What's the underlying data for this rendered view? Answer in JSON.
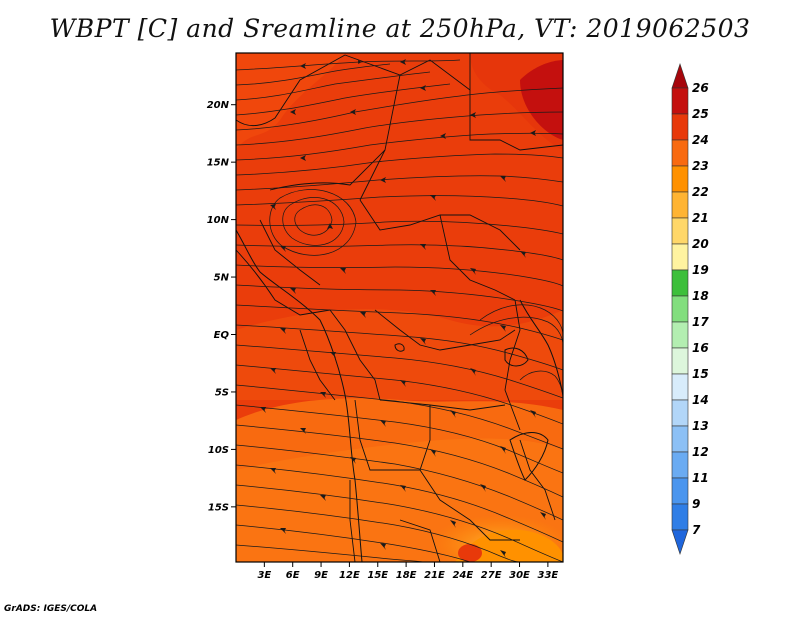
{
  "title": "WBPT [C] and Sreamline at 250hPa, VT: 2019062503",
  "credit": "GrADS: IGES/COLA",
  "map": {
    "lat_labels": [
      "20N",
      "15N",
      "10N",
      "5N",
      "EQ",
      "5S",
      "10S",
      "15S"
    ],
    "lat_values": [
      20,
      15,
      10,
      5,
      0,
      -5,
      -10,
      -15
    ],
    "lon_labels": [
      "3E",
      "6E",
      "9E",
      "12E",
      "15E",
      "18E",
      "21E",
      "24E",
      "27E",
      "30E",
      "33E"
    ],
    "lon_values": [
      3,
      6,
      9,
      12,
      15,
      18,
      21,
      24,
      27,
      30,
      33
    ],
    "lon_range": [
      0,
      34.6
    ],
    "lat_range": [
      -19.8,
      24.5
    ]
  },
  "colorbar": {
    "labels": [
      "7",
      "9",
      "11",
      "12",
      "13",
      "14",
      "15",
      "16",
      "17",
      "18",
      "19",
      "20",
      "21",
      "22",
      "23",
      "24",
      "25",
      "26"
    ],
    "colors": [
      "#1f66dc",
      "#2f7ee6",
      "#4a95ee",
      "#6aabf2",
      "#8cc0f5",
      "#b2d6f8",
      "#d8ecfb",
      "#ddf6dc",
      "#b3eeb1",
      "#82de7e",
      "#3dbf3b",
      "#fff3a0",
      "#ffd769",
      "#ffb433",
      "#ff9100",
      "#f86a10",
      "#e8390a",
      "#c4100e",
      "#a6060c"
    ]
  }
}
